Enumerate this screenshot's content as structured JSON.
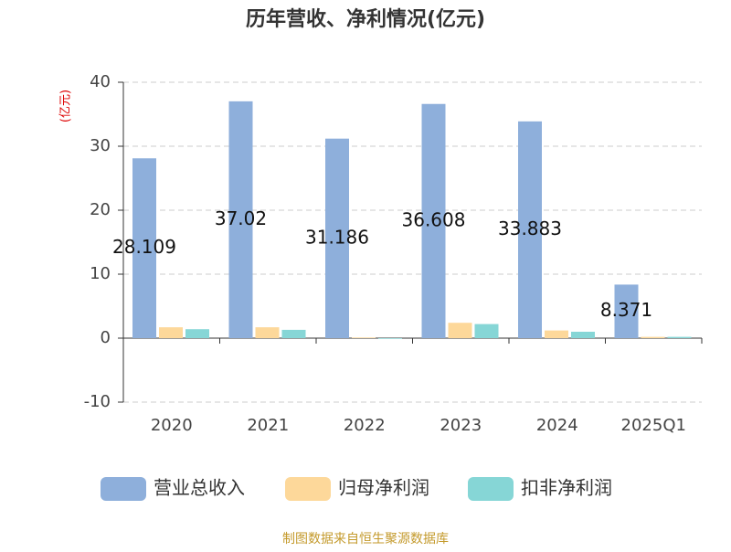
{
  "chart_data": {
    "type": "bar",
    "title": "历年营收、净利情况(亿元)",
    "y_label": "(亿元)",
    "categories": [
      "2020",
      "2021",
      "2022",
      "2023",
      "2024",
      "2025Q1"
    ],
    "series": [
      {
        "name": "营业总收入",
        "color": "#8eafdb",
        "values": [
          28.109,
          37.02,
          31.186,
          36.608,
          33.883,
          8.371
        ],
        "show_labels": true
      },
      {
        "name": "归母净利润",
        "color": "#fdd89a",
        "values": [
          1.7,
          1.7,
          0.1,
          2.4,
          1.2,
          0.2
        ]
      },
      {
        "name": "扣非净利润",
        "color": "#86d6d6",
        "values": [
          1.4,
          1.3,
          -0.1,
          2.2,
          1.0,
          0.2
        ]
      }
    ],
    "ylim": [
      -10,
      40
    ],
    "yticks": [
      -10,
      0,
      10,
      20,
      30,
      40
    ],
    "grid": true,
    "source": "制图数据来自恒生聚源数据库"
  }
}
